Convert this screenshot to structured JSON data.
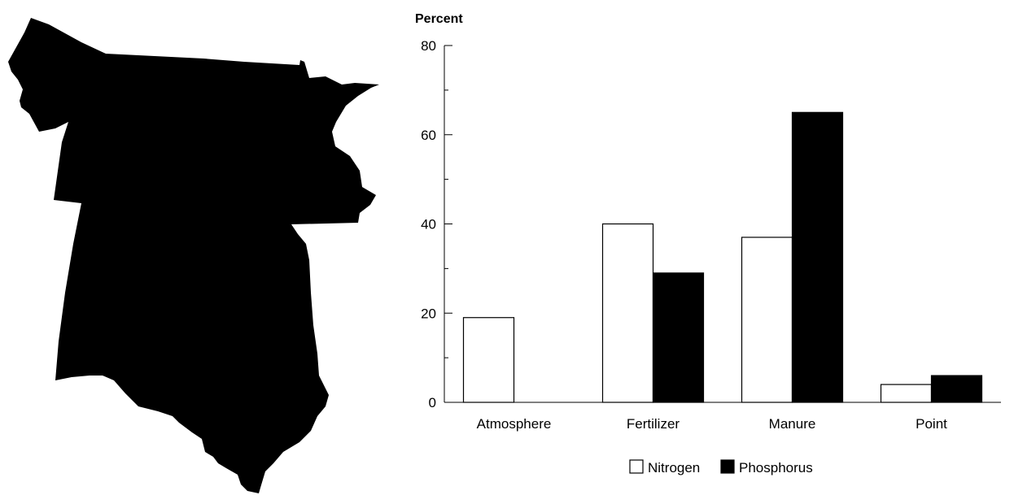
{
  "colors": {
    "nitrogen": "#ffffff",
    "phosphorus": "#000000",
    "map_fill": "#000000"
  },
  "map": {
    "icon": "region-map-silhouette-icon"
  },
  "chart_data": {
    "type": "bar",
    "title": "",
    "xlabel": "",
    "ylabel": "Percent",
    "ylim": [
      0,
      80
    ],
    "yticks": [
      "0",
      "20",
      "40",
      "60",
      "80"
    ],
    "categories": [
      "Atmosphere",
      "Fertilizer",
      "Manure",
      "Point"
    ],
    "series": [
      {
        "name": "Nitrogen",
        "values": [
          19,
          40,
          37,
          4
        ]
      },
      {
        "name": "Phosphorus",
        "values": [
          0,
          29,
          65,
          6
        ]
      }
    ],
    "legend": {
      "placement": "bottom"
    },
    "grid": false
  }
}
